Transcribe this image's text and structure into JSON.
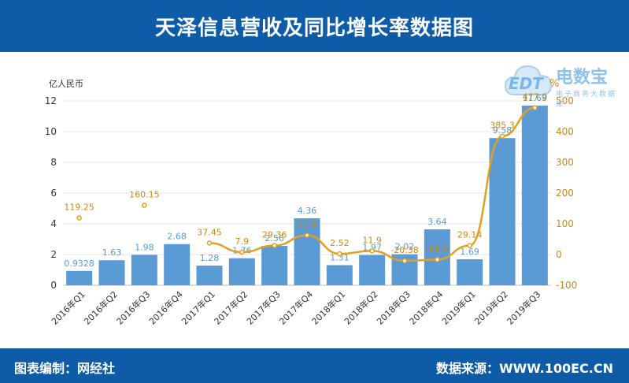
{
  "header": {
    "title": "天泽信息营收及同比增长率数据图"
  },
  "footer": {
    "left": "图表编制：网经社",
    "right": "数据来源：WWW.100EC.CN"
  },
  "logo": {
    "name": "电数宝",
    "sub": "电子商务大数据库",
    "mark": "EDT"
  },
  "colors": {
    "bar": "#5b9bd5",
    "line": "#e3a020",
    "header": "#0e5ba8",
    "bar_label": "#5b9bd5",
    "line_label": "#d4870c"
  },
  "chart_data": {
    "type": "bar",
    "categories": [
      "2016年Q1",
      "2016年Q2",
      "2016年Q3",
      "2016年Q4",
      "2017年Q1",
      "2017年Q2",
      "2017年Q3",
      "2017年Q4",
      "2018年Q1",
      "2018年Q2",
      "2018年Q3",
      "2018年Q4",
      "2019年Q1",
      "2019年Q2",
      "2019年Q3"
    ],
    "series": [
      {
        "type": "bar",
        "axis": "left",
        "values": [
          0.9328,
          1.63,
          1.98,
          2.68,
          1.28,
          1.76,
          2.56,
          4.36,
          1.31,
          1.97,
          2.02,
          3.64,
          1.69,
          9.58,
          11.69
        ],
        "labels": [
          "0.9328",
          "1.63",
          "1.98",
          "2.68",
          "1.28",
          "1.76",
          "2.56",
          "4.36",
          "1.31",
          "1.97",
          "2.02",
          "3.64",
          "1.69",
          "9.58",
          "11.69"
        ]
      },
      {
        "type": "line",
        "axis": "right",
        "values": [
          119.25,
          null,
          160.15,
          null,
          37.45,
          7.9,
          29.36,
          62.8,
          2.52,
          11.9,
          -20.38,
          -16.5,
          29.14,
          385.3,
          477.9
        ],
        "labels": [
          "119.25",
          "",
          "160.15",
          "",
          "37.45",
          "7.9",
          "29.36",
          "62.8",
          "2.52",
          "11.9",
          "-20.38",
          "-16.5",
          "29.14",
          "385.3",
          "477.9"
        ]
      }
    ],
    "ylabel": "亿人民币",
    "y2label": "%",
    "ylim": [
      0,
      12
    ],
    "y2lim": [
      -100,
      500
    ],
    "yticks": [
      "0",
      "2",
      "4",
      "6",
      "8",
      "10",
      "12"
    ],
    "y2ticks": [
      "-100",
      "0",
      "100",
      "200",
      "300",
      "400",
      "500"
    ],
    "grid": true,
    "legend": "none"
  }
}
